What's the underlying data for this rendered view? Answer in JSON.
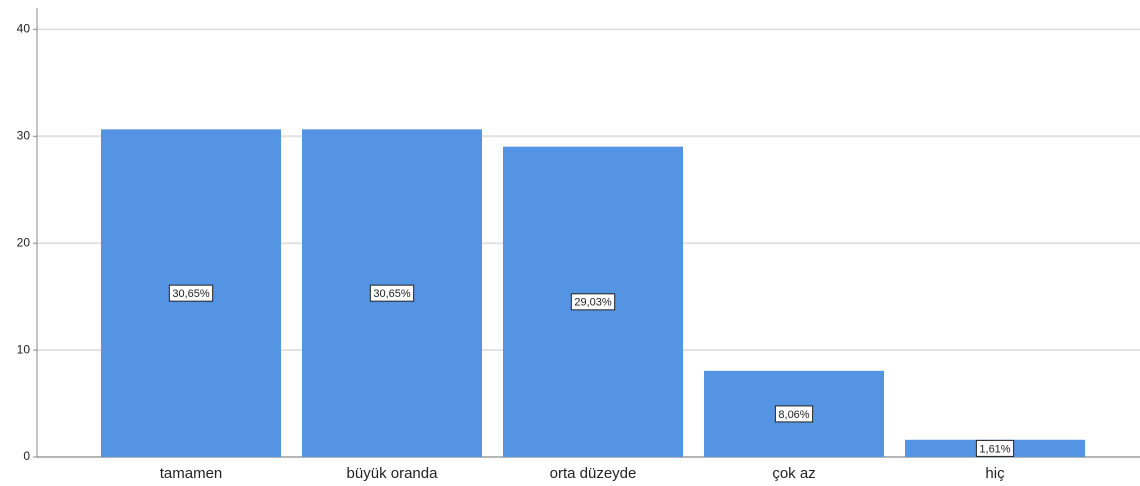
{
  "chart_data": {
    "type": "bar",
    "categories": [
      "tamamen",
      "büyük oranda",
      "orta düzeyde",
      "çok az",
      "hiç"
    ],
    "values": [
      30.65,
      30.65,
      29.03,
      8.06,
      1.61
    ],
    "value_labels": [
      "30,65%",
      "30,65%",
      "29,03%",
      "8,06%",
      "1,61%"
    ],
    "color": "#5594e2",
    "ylim": [
      0,
      42
    ],
    "yticks": [
      0,
      10,
      20,
      30,
      40
    ],
    "grid": true
  }
}
